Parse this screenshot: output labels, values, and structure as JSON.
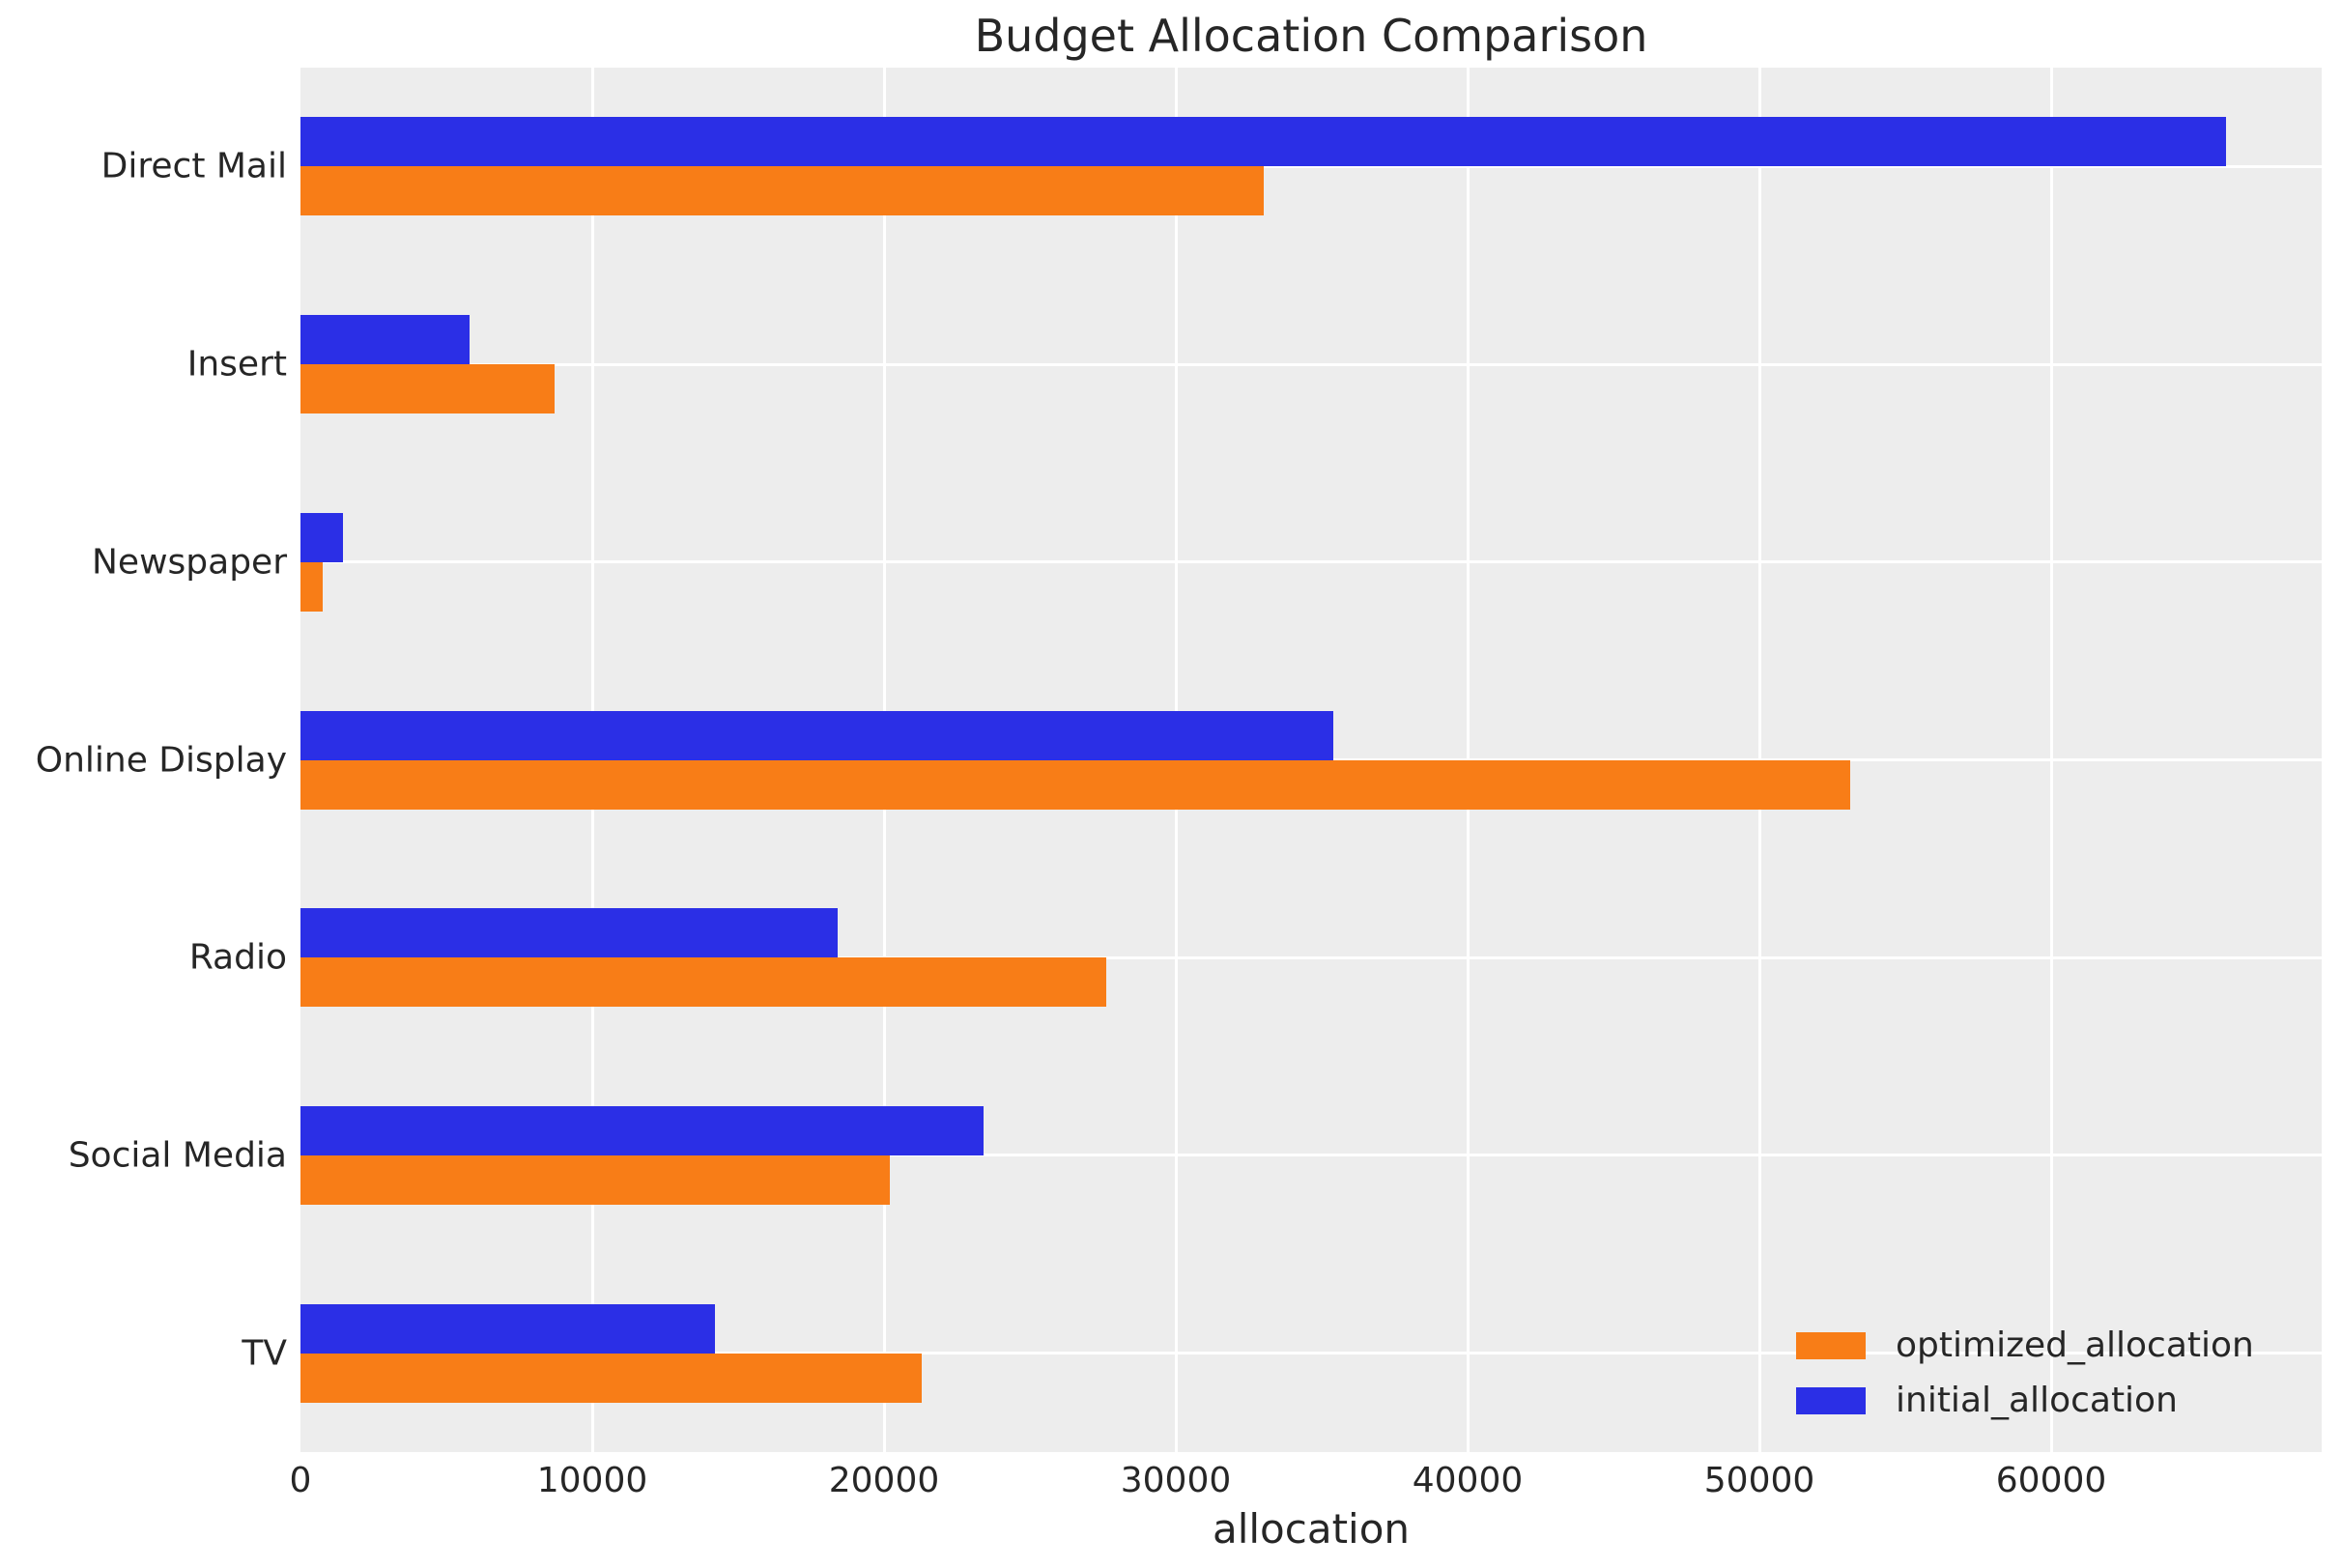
{
  "title": "Budget Allocation Comparison",
  "chart_data": {
    "type": "bar",
    "orientation": "horizontal",
    "title": "Budget Allocation Comparison",
    "xlabel": "allocation",
    "ylabel": "",
    "categories": [
      "Direct Mail",
      "Insert",
      "Newspaper",
      "Online Display",
      "Radio",
      "Social Media",
      "TV"
    ],
    "series": [
      {
        "name": "optimized_allocation",
        "color": "#f87d17",
        "values": [
          33000,
          8700,
          760,
          53100,
          27600,
          20200,
          21300
        ]
      },
      {
        "name": "initial_allocation",
        "color": "#2b2fe6",
        "values": [
          66000,
          5800,
          1450,
          35400,
          18400,
          23400,
          14200
        ]
      }
    ],
    "group_order_top_to_bottom": [
      "initial_allocation",
      "optimized_allocation"
    ],
    "x_ticks": [
      0,
      10000,
      20000,
      30000,
      40000,
      50000,
      60000
    ],
    "xlim": [
      0,
      69270
    ],
    "grid": true,
    "grid_color": "#ffffff",
    "plot_background": "#ededed",
    "page_background": "#ffffff",
    "text_color": "#262626",
    "legend_position": "lower right",
    "legend_entries": [
      "optimized_allocation",
      "initial_allocation"
    ]
  }
}
